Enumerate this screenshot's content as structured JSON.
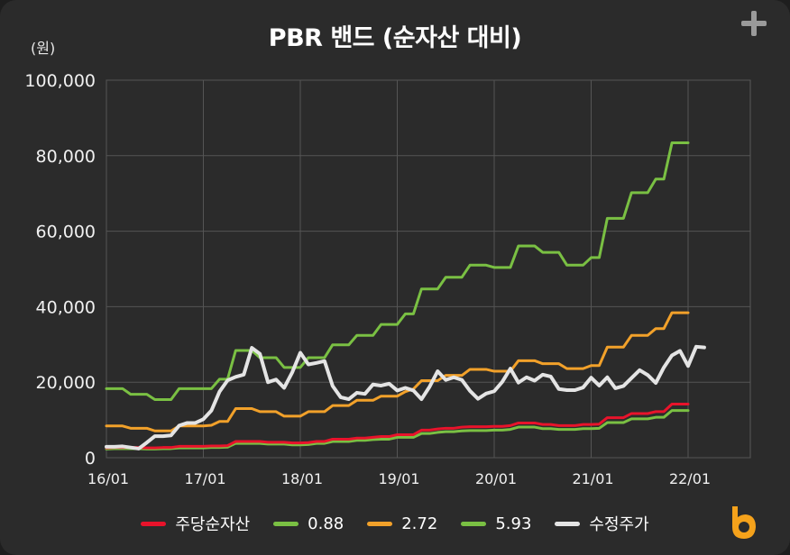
{
  "chart_data": {
    "type": "line",
    "title": "PBR 밴드 (순자산 대비)",
    "ylabel": "(원)",
    "ylim": [
      0,
      100000
    ],
    "yticks": [
      "0",
      "20,000",
      "40,000",
      "60,000",
      "80,000",
      "100,000"
    ],
    "xticks": [
      "16/01",
      "17/01",
      "18/01",
      "19/01",
      "20/01",
      "21/01",
      "22/01"
    ],
    "x_start": "2016-01",
    "grid": true,
    "legend_position": "bottom",
    "series": [
      {
        "name": "주당순자산",
        "color": "#e8132b",
        "values": [
          2600,
          2700,
          2700,
          2700,
          2700,
          2600,
          2600,
          2700,
          2700,
          3000,
          3000,
          3000,
          3000,
          3100,
          3100,
          3200,
          4300,
          4300,
          4300,
          4300,
          4100,
          4100,
          4100,
          3900,
          3900,
          4000,
          4300,
          4300,
          4900,
          4900,
          4900,
          5200,
          5200,
          5400,
          5600,
          5600,
          6100,
          6100,
          6100,
          7300,
          7300,
          7600,
          7800,
          7800,
          8100,
          8200,
          8200,
          8200,
          8300,
          8300,
          8500,
          9200,
          9200,
          9200,
          8800,
          8800,
          8500,
          8500,
          8500,
          8800,
          8800,
          8900,
          10600,
          10600,
          10600,
          11700,
          11700,
          11700,
          12200,
          12200,
          14200,
          14200,
          14200
        ]
      },
      {
        "name": "0.88",
        "color": "#7ac043",
        "values": [
          2300,
          2400,
          2400,
          2400,
          2400,
          2300,
          2300,
          2400,
          2400,
          2600,
          2600,
          2600,
          2600,
          2700,
          2700,
          2800,
          3800,
          3800,
          3800,
          3800,
          3600,
          3600,
          3600,
          3400,
          3400,
          3500,
          3800,
          3800,
          4300,
          4300,
          4300,
          4600,
          4600,
          4800,
          4900,
          4900,
          5400,
          5400,
          5400,
          6400,
          6400,
          6700,
          6900,
          6900,
          7100,
          7200,
          7200,
          7200,
          7300,
          7300,
          7500,
          8100,
          8100,
          8100,
          7700,
          7700,
          7500,
          7500,
          7500,
          7700,
          7700,
          7800,
          9300,
          9300,
          9300,
          10300,
          10300,
          10300,
          10700,
          10700,
          12500,
          12500,
          12500
        ]
      },
      {
        "name": "2.72",
        "color": "#f2a12a",
        "values": [
          8400,
          8400,
          8400,
          7800,
          7800,
          7800,
          7100,
          7100,
          7100,
          8400,
          8400,
          8400,
          8400,
          8600,
          9600,
          9600,
          13000,
          13000,
          13000,
          12200,
          12200,
          12200,
          11000,
          11000,
          11000,
          12200,
          12200,
          12200,
          13800,
          13800,
          13800,
          15200,
          15200,
          15200,
          16300,
          16300,
          16300,
          17500,
          18200,
          20400,
          20400,
          20400,
          21800,
          21800,
          21800,
          23400,
          23400,
          23400,
          22900,
          22900,
          22900,
          25700,
          25700,
          25700,
          24900,
          24900,
          24900,
          23600,
          23600,
          23600,
          24400,
          24400,
          29300,
          29300,
          29300,
          32400,
          32400,
          32400,
          34200,
          34200,
          38400,
          38400,
          38400
        ]
      },
      {
        "name": "5.93",
        "color": "#7ac043",
        "values": [
          18300,
          18300,
          18300,
          16800,
          16800,
          16800,
          15400,
          15400,
          15400,
          18300,
          18300,
          18300,
          18300,
          18300,
          20800,
          20800,
          28400,
          28400,
          28400,
          26500,
          26500,
          26500,
          23900,
          23900,
          23900,
          26500,
          26500,
          26500,
          29900,
          29900,
          29900,
          32400,
          32400,
          32400,
          35300,
          35300,
          35300,
          38100,
          38100,
          44700,
          44700,
          44700,
          47800,
          47800,
          47800,
          51000,
          51000,
          51000,
          50400,
          50400,
          50400,
          56100,
          56100,
          56100,
          54400,
          54400,
          54400,
          51000,
          51000,
          51000,
          53000,
          53000,
          63400,
          63400,
          63400,
          70200,
          70200,
          70200,
          73800,
          73800,
          83400,
          83400,
          83400
        ]
      },
      {
        "name": "수정주가",
        "color": "#e4e4e4",
        "values": [
          2900,
          2900,
          3000,
          2700,
          2400,
          4000,
          5700,
          5700,
          5900,
          8500,
          9200,
          9200,
          10200,
          12500,
          17500,
          20500,
          21400,
          22000,
          29100,
          27500,
          20000,
          20700,
          18500,
          22600,
          27800,
          24700,
          25100,
          25600,
          19000,
          16000,
          15500,
          17200,
          16900,
          19400,
          19100,
          19600,
          17800,
          18500,
          17800,
          15500,
          18800,
          22900,
          20600,
          21300,
          20600,
          17700,
          15600,
          17000,
          17600,
          20100,
          23600,
          19900,
          21300,
          20400,
          22000,
          21500,
          18200,
          17900,
          17900,
          18600,
          21200,
          19100,
          21300,
          18400,
          19000,
          21100,
          23200,
          21900,
          19800,
          23900,
          27100,
          28300,
          24300,
          29400,
          29200
        ]
      }
    ]
  },
  "legend": [
    {
      "label": "주당순자산",
      "color": "#e8132b"
    },
    {
      "label": "0.88",
      "color": "#7ac043"
    },
    {
      "label": "2.72",
      "color": "#f2a12a"
    },
    {
      "label": "5.93",
      "color": "#7ac043"
    },
    {
      "label": "수정주가",
      "color": "#e4e4e4"
    }
  ],
  "icons": {
    "expand": "plus-icon",
    "brand": "brand-logo-icon"
  }
}
